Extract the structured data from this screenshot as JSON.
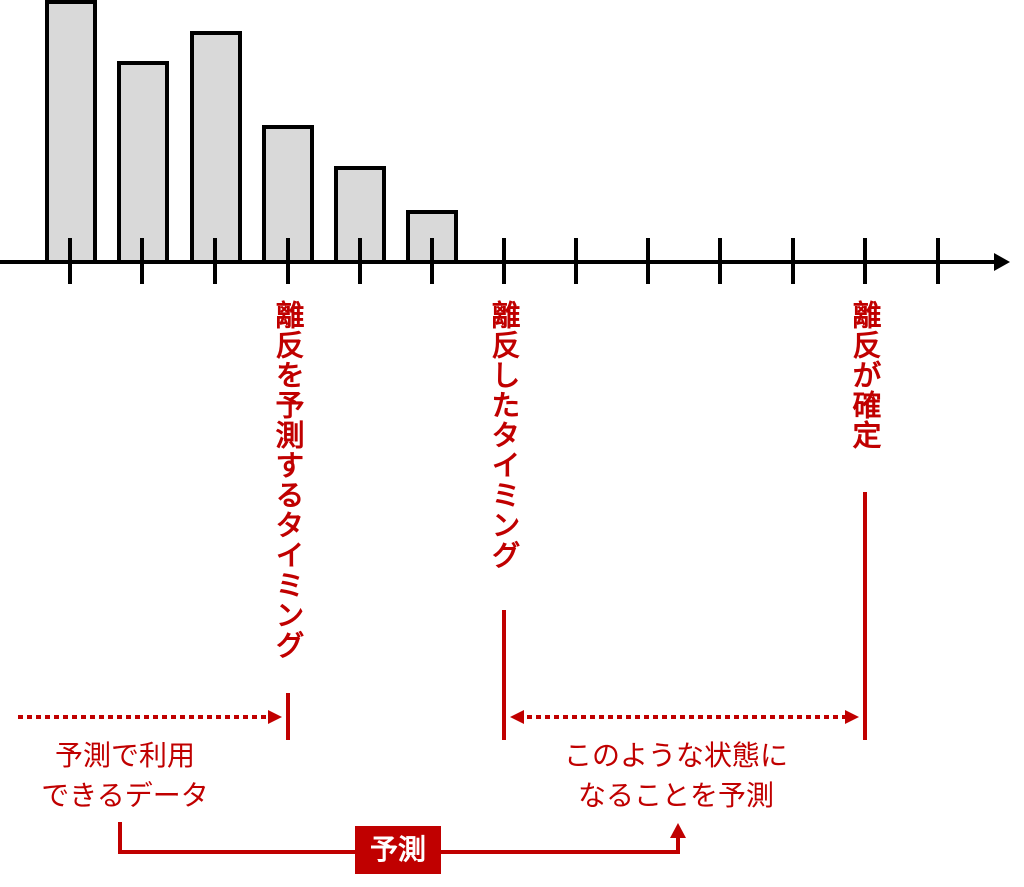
{
  "timeline_labels": [
    "離反を予測するタイミング",
    "離反したタイミング",
    "離反が確定"
  ],
  "available_data": [
    "予測で利用",
    "できるデータ"
  ],
  "predicted_state": [
    "このような状態に",
    "なることを予測"
  ],
  "predict_label": "予測"
}
